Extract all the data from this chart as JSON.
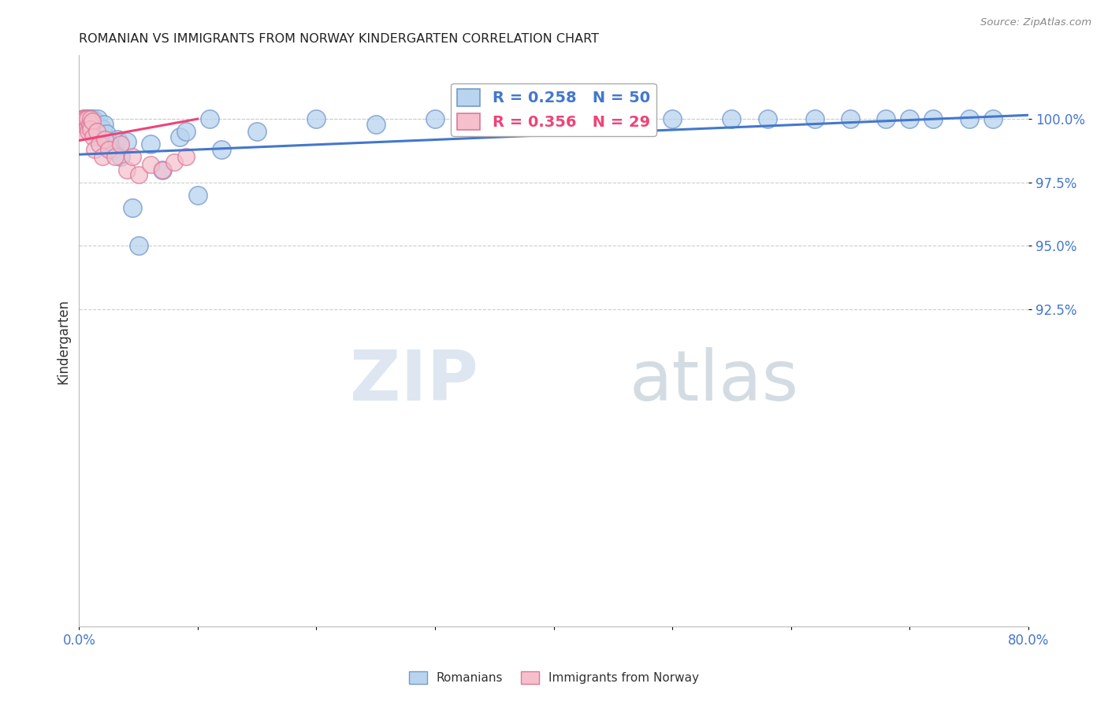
{
  "title": "ROMANIAN VS IMMIGRANTS FROM NORWAY KINDERGARTEN CORRELATION CHART",
  "source": "Source: ZipAtlas.com",
  "ylabel": "Kindergarten",
  "xlim": [
    0.0,
    80.0
  ],
  "ylim": [
    80.0,
    102.5
  ],
  "ytick_positions": [
    92.5,
    95.0,
    97.5,
    100.0
  ],
  "ytick_labels": [
    "92.5%",
    "95.0%",
    "97.5%",
    "100.0%"
  ],
  "blue_color": "#b8d4ee",
  "blue_edge": "#7799cc",
  "pink_color": "#f5c0cc",
  "pink_edge": "#dd7799",
  "blue_line_color": "#4477cc",
  "pink_line_color": "#ee4477",
  "watermark1": "ZIP",
  "watermark2": "atlas",
  "legend_label1": "R = 0.258   N = 50",
  "legend_label2": "R = 0.356   N = 29",
  "background_color": "#ffffff",
  "grid_color": "#cccccc",
  "blue_trend_x": [
    0,
    80
  ],
  "blue_trend_y": [
    98.6,
    100.15
  ],
  "pink_trend_x": [
    0,
    10
  ],
  "pink_trend_y": [
    99.15,
    100.0
  ],
  "scatter_blue_x": [
    0.4,
    0.5,
    0.6,
    0.7,
    0.8,
    0.9,
    1.0,
    1.0,
    1.1,
    1.2,
    1.3,
    1.4,
    1.5,
    1.6,
    1.7,
    1.8,
    2.0,
    2.1,
    2.3,
    2.5,
    2.8,
    3.2,
    3.5,
    4.0,
    4.5,
    6.0,
    7.0,
    8.5,
    10.0,
    12.0,
    30.0,
    38.0,
    47.0,
    55.0,
    62.0,
    70.0,
    75.0,
    5.0,
    9.0,
    11.0,
    15.0,
    20.0,
    25.0,
    42.0,
    50.0,
    58.0,
    65.0,
    68.0,
    72.0,
    77.0
  ],
  "scatter_blue_y": [
    100.0,
    100.0,
    100.0,
    99.8,
    100.0,
    100.0,
    99.9,
    100.0,
    99.7,
    100.0,
    99.8,
    99.9,
    99.5,
    100.0,
    99.7,
    99.3,
    99.6,
    99.8,
    99.4,
    99.0,
    98.8,
    99.2,
    98.5,
    99.1,
    96.5,
    99.0,
    98.0,
    99.3,
    97.0,
    98.8,
    100.0,
    100.0,
    100.0,
    100.0,
    100.0,
    100.0,
    100.0,
    95.0,
    99.5,
    100.0,
    99.5,
    100.0,
    99.8,
    100.0,
    100.0,
    100.0,
    100.0,
    100.0,
    100.0,
    100.0
  ],
  "scatter_pink_x": [
    0.1,
    0.2,
    0.3,
    0.4,
    0.5,
    0.6,
    0.7,
    0.7,
    0.8,
    0.9,
    1.0,
    1.0,
    1.1,
    1.2,
    1.3,
    1.5,
    1.7,
    2.0,
    2.2,
    2.5,
    3.0,
    3.5,
    4.0,
    4.5,
    5.0,
    6.0,
    7.0,
    8.0,
    9.0
  ],
  "scatter_pink_y": [
    99.5,
    100.0,
    100.0,
    99.8,
    100.0,
    100.0,
    99.7,
    100.0,
    99.5,
    99.8,
    100.0,
    99.6,
    99.9,
    99.3,
    98.8,
    99.5,
    99.0,
    98.5,
    99.2,
    98.8,
    98.5,
    99.0,
    98.0,
    98.5,
    97.8,
    98.2,
    98.0,
    98.3,
    98.5
  ]
}
